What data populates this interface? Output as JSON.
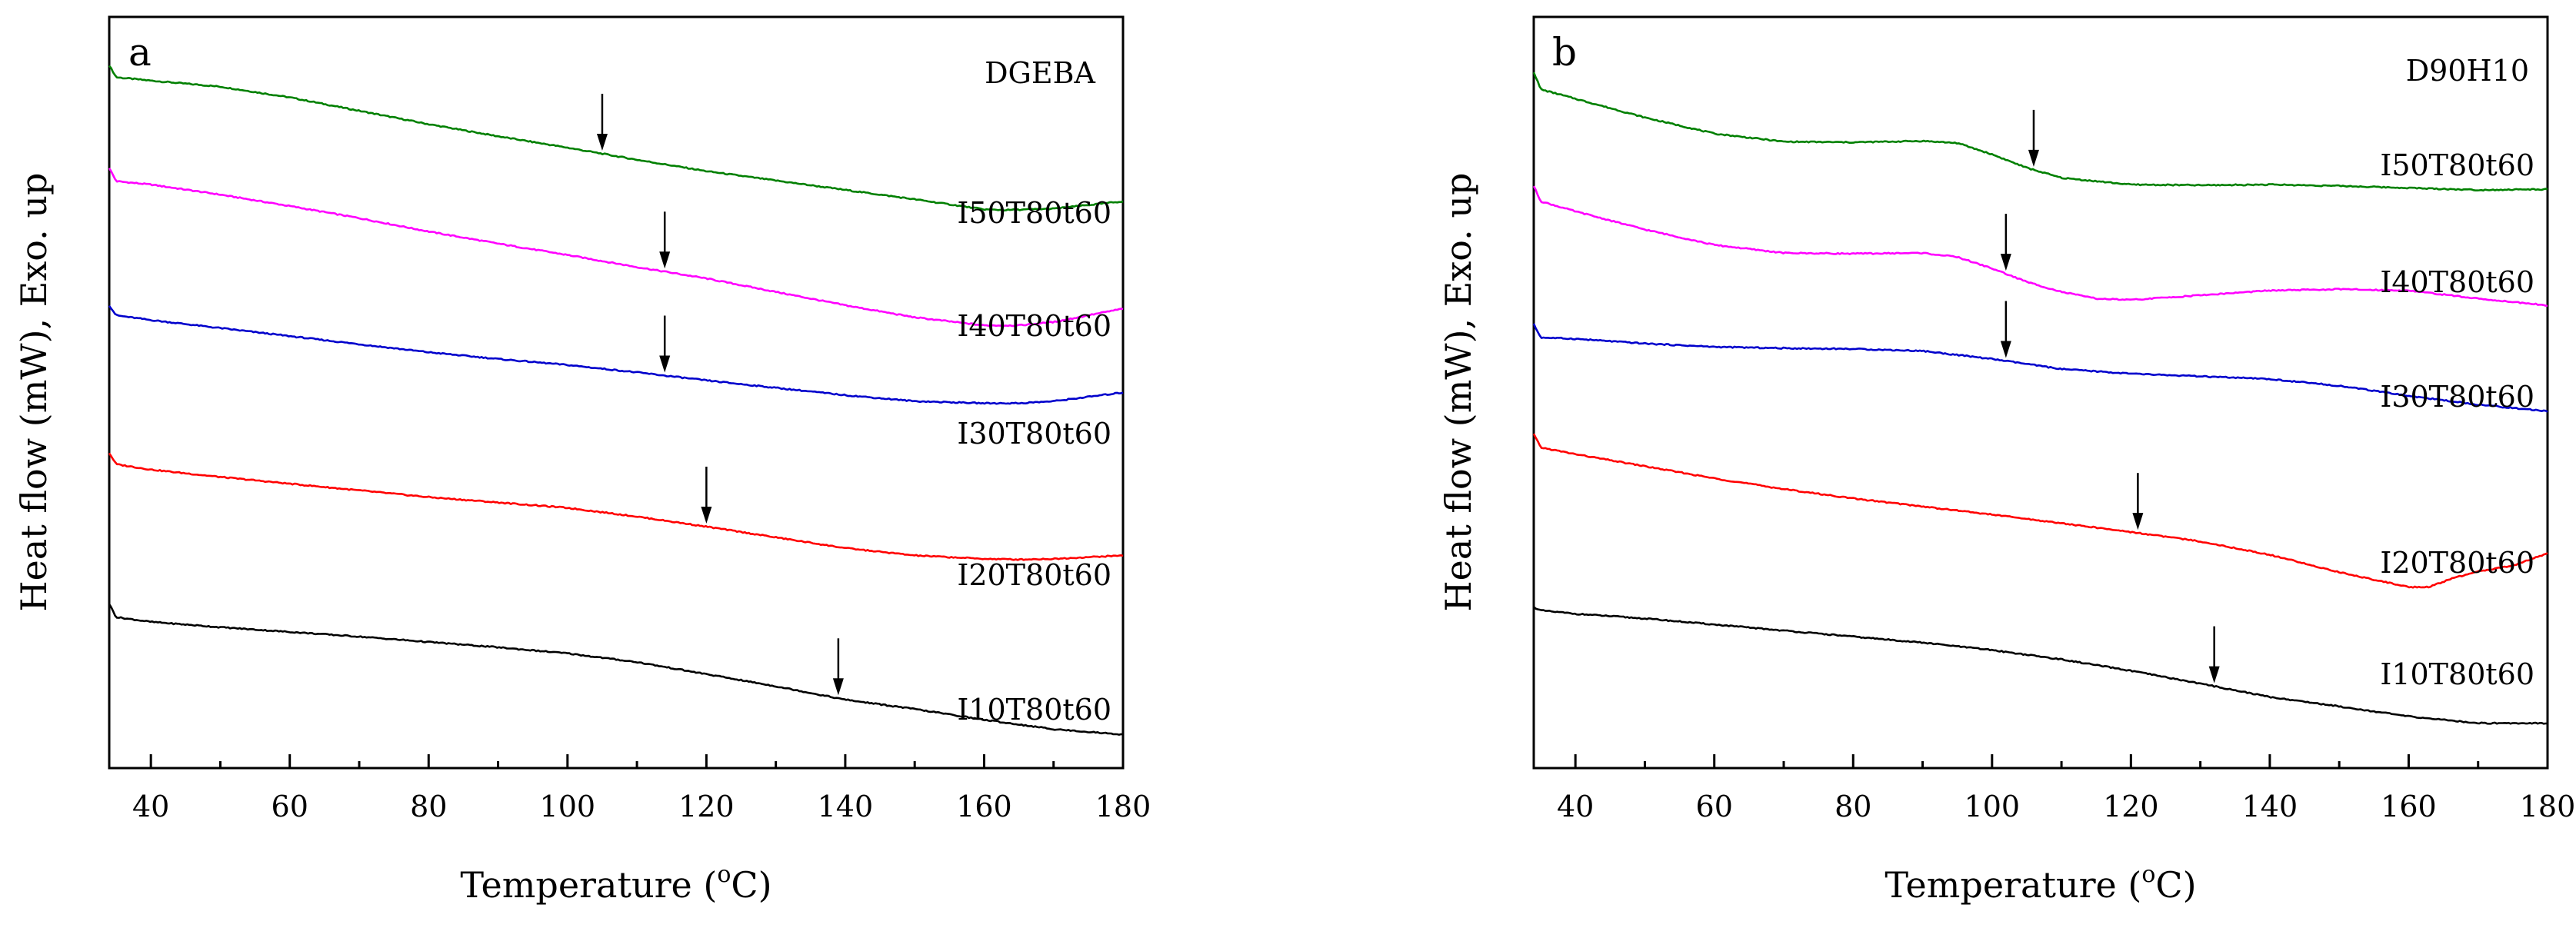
{
  "chart_data": [
    {
      "type": "line",
      "panel_label": "a",
      "panel_title": "DGEBA",
      "xlabel": "Temperature (oC)",
      "xlabel_parts": {
        "before": "Temperature (",
        "sup": "o",
        "after": "C)"
      },
      "ylabel": "Heat flow (mW), Exo. up",
      "xlim": [
        34,
        180
      ],
      "x_ticks": [
        40,
        60,
        80,
        100,
        120,
        140,
        160,
        180
      ],
      "x_tick_labels": [
        "40",
        "60",
        "80",
        "100",
        "120",
        "140",
        "160",
        "180"
      ],
      "y_ticks": false,
      "series": [
        {
          "name": "I50T80t60",
          "color": "#008000",
          "arrow_x": 105,
          "x": [
            34,
            35,
            40,
            50,
            60,
            70,
            80,
            90,
            100,
            110,
            120,
            130,
            140,
            150,
            160,
            163,
            170,
            180
          ],
          "y": [
            4.48,
            4.3,
            4.25,
            4.16,
            4.0,
            3.8,
            3.6,
            3.42,
            3.25,
            3.07,
            2.9,
            2.76,
            2.62,
            2.48,
            2.33,
            2.32,
            2.34,
            2.45
          ]
        },
        {
          "name": "I40T80t60",
          "color": "#ff00ff",
          "arrow_x": 114,
          "x": [
            34,
            35,
            40,
            50,
            60,
            70,
            80,
            90,
            100,
            110,
            120,
            130,
            140,
            150,
            160,
            165,
            170,
            180
          ],
          "y": [
            2.95,
            2.75,
            2.7,
            2.55,
            2.38,
            2.2,
            2.0,
            1.82,
            1.65,
            1.47,
            1.3,
            1.1,
            0.9,
            0.72,
            0.6,
            0.6,
            0.65,
            0.85
          ]
        },
        {
          "name": "I30T80t60",
          "color": "#0000cc",
          "arrow_x": 114,
          "x": [
            34,
            35,
            40,
            50,
            60,
            70,
            80,
            90,
            100,
            110,
            120,
            130,
            140,
            150,
            160,
            165,
            170,
            180
          ],
          "y": [
            0.9,
            0.75,
            0.68,
            0.56,
            0.44,
            0.32,
            0.2,
            0.1,
            0.01,
            -0.1,
            -0.22,
            -0.33,
            -0.44,
            -0.53,
            -0.56,
            -0.56,
            -0.53,
            -0.4
          ]
        },
        {
          "name": "I20T80t60",
          "color": "#ff0000",
          "arrow_x": 120,
          "x": [
            34,
            35,
            40,
            50,
            60,
            70,
            80,
            90,
            100,
            110,
            120,
            130,
            140,
            150,
            160,
            165,
            170,
            180
          ],
          "y": [
            -1.3,
            -1.47,
            -1.55,
            -1.66,
            -1.76,
            -1.86,
            -1.96,
            -2.04,
            -2.12,
            -2.25,
            -2.4,
            -2.56,
            -2.72,
            -2.83,
            -2.88,
            -2.89,
            -2.88,
            -2.83
          ]
        },
        {
          "name": "I10T80t60",
          "color": "#000000",
          "arrow_x": 139,
          "x": [
            34,
            35,
            40,
            50,
            60,
            70,
            80,
            90,
            100,
            110,
            120,
            130,
            140,
            150,
            160,
            170,
            180
          ],
          "y": [
            -3.55,
            -3.75,
            -3.82,
            -3.9,
            -3.97,
            -4.04,
            -4.12,
            -4.2,
            -4.29,
            -4.42,
            -4.6,
            -4.78,
            -4.98,
            -5.12,
            -5.28,
            -5.42,
            -5.5
          ]
        }
      ]
    },
    {
      "type": "line",
      "panel_label": "b",
      "panel_title": "D90H10",
      "xlabel": "Temperature (oC)",
      "xlabel_parts": {
        "before": "Temperature (",
        "sup": "o",
        "after": "C)"
      },
      "ylabel": "Heat flow (mW), Exo. up",
      "xlim": [
        34,
        180
      ],
      "x_ticks": [
        40,
        60,
        80,
        100,
        120,
        140,
        160,
        180
      ],
      "x_tick_labels": [
        "40",
        "60",
        "80",
        "100",
        "120",
        "140",
        "160",
        "180"
      ],
      "y_ticks": false,
      "series": [
        {
          "name": "I50T80t60",
          "color": "#008000",
          "arrow_x": 106,
          "x": [
            34,
            35,
            40,
            50,
            60,
            70,
            80,
            90,
            95,
            100,
            105,
            110,
            120,
            130,
            140,
            150,
            160,
            170,
            180
          ],
          "y": [
            4.38,
            4.12,
            3.98,
            3.7,
            3.46,
            3.34,
            3.33,
            3.35,
            3.32,
            3.15,
            2.95,
            2.8,
            2.7,
            2.69,
            2.7,
            2.68,
            2.65,
            2.62,
            2.63
          ]
        },
        {
          "name": "I40T80t60",
          "color": "#ff00ff",
          "arrow_x": 102,
          "x": [
            34,
            35,
            40,
            50,
            60,
            70,
            80,
            90,
            95,
            100,
            105,
            110,
            115,
            120,
            130,
            140,
            150,
            160,
            170,
            180
          ],
          "y": [
            2.68,
            2.45,
            2.3,
            2.03,
            1.8,
            1.68,
            1.67,
            1.68,
            1.62,
            1.45,
            1.25,
            1.1,
            1.0,
            0.98,
            1.05,
            1.12,
            1.14,
            1.12,
            1.0,
            0.9
          ]
        },
        {
          "name": "I30T80t60",
          "color": "#0000cc",
          "arrow_x": 102,
          "x": [
            34,
            35,
            40,
            50,
            60,
            70,
            80,
            90,
            100,
            110,
            120,
            130,
            140,
            150,
            160,
            170,
            180
          ],
          "y": [
            0.62,
            0.42,
            0.4,
            0.33,
            0.28,
            0.26,
            0.25,
            0.22,
            0.1,
            -0.05,
            -0.12,
            -0.16,
            -0.2,
            -0.3,
            -0.45,
            -0.58,
            -0.68
          ]
        },
        {
          "name": "I20T80t60",
          "color": "#ff0000",
          "arrow_x": 121,
          "x": [
            34,
            35,
            40,
            50,
            60,
            70,
            80,
            90,
            100,
            110,
            120,
            130,
            140,
            150,
            160,
            163,
            166,
            170,
            175,
            180
          ],
          "y": [
            -1.02,
            -1.22,
            -1.32,
            -1.5,
            -1.68,
            -1.84,
            -1.98,
            -2.1,
            -2.22,
            -2.35,
            -2.48,
            -2.62,
            -2.82,
            -3.08,
            -3.3,
            -3.3,
            -3.18,
            -3.07,
            -2.98,
            -2.8
          ]
        },
        {
          "name": "I10T80t60",
          "color": "#000000",
          "arrow_x": 132,
          "x": [
            34,
            35,
            40,
            50,
            60,
            70,
            80,
            90,
            100,
            110,
            120,
            130,
            140,
            150,
            160,
            170,
            180
          ],
          "y": [
            -3.6,
            -3.65,
            -3.7,
            -3.77,
            -3.86,
            -3.95,
            -4.04,
            -4.13,
            -4.24,
            -4.38,
            -4.55,
            -4.74,
            -4.94,
            -5.08,
            -5.23,
            -5.33,
            -5.33
          ]
        }
      ]
    }
  ]
}
